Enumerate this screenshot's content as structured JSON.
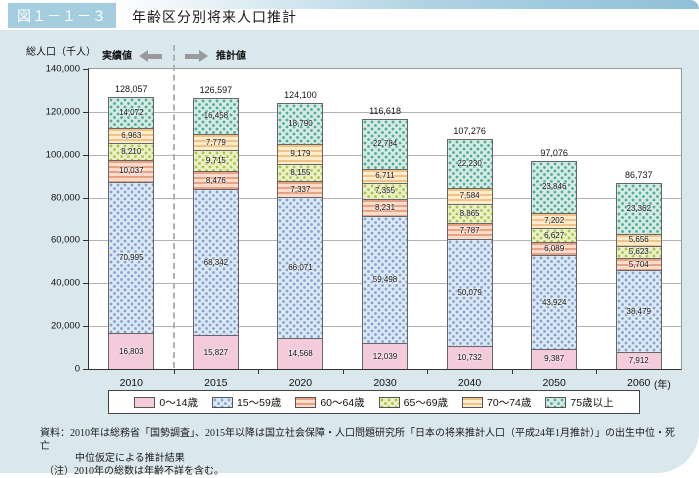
{
  "figure": {
    "tag": "図１－１－３",
    "title": "年齢区分別将来人口推計"
  },
  "chart": {
    "y_axis_title": "総人口（千人）",
    "actual_label": "実績値",
    "projected_label": "推計値",
    "year_unit_label": "(年)",
    "y_tick_labels": [
      "0",
      "20,000",
      "40,000",
      "60,000",
      "80,000",
      "100,000",
      "120,000",
      "140,000"
    ]
  },
  "chart_data": {
    "type": "bar",
    "stacked": true,
    "title": "年齢区分別将来人口推計",
    "ylabel": "総人口（千人）",
    "ylim": [
      0,
      140000
    ],
    "grid": true,
    "legend_position": "bottom",
    "categories": [
      "2010",
      "2015",
      "2020",
      "2030",
      "2040",
      "2050",
      "2060"
    ],
    "totals": [
      128057,
      126597,
      124100,
      116618,
      107276,
      97076,
      86737
    ],
    "series": [
      {
        "name": "0～14歳",
        "pattern": "p-solid-pink",
        "color": "#f3cbdb",
        "values": [
          16803,
          15827,
          14568,
          12039,
          10732,
          9387,
          7912
        ]
      },
      {
        "name": "15～59歳",
        "pattern": "p-dots-blue",
        "color": "#dde8f4",
        "values": [
          70995,
          68342,
          66071,
          59498,
          50079,
          43924,
          38479
        ]
      },
      {
        "name": "60～64歳",
        "pattern": "p-stripes-salmon",
        "color": "#f7d5c3",
        "values": [
          10037,
          8476,
          7337,
          8231,
          7787,
          6089,
          5704
        ]
      },
      {
        "name": "65～69歳",
        "pattern": "p-dots-green",
        "color": "#eaf1c6",
        "values": [
          8210,
          9715,
          8155,
          7355,
          8865,
          6627,
          5623
        ]
      },
      {
        "name": "70～74歳",
        "pattern": "p-stripes-orange",
        "color": "#fdeccb",
        "values": [
          6963,
          7779,
          9179,
          6711,
          7584,
          7202,
          5656
        ]
      },
      {
        "name": "75歳以上",
        "pattern": "p-dots-teal",
        "color": "#d5eae3",
        "values": [
          14072,
          16458,
          18790,
          22784,
          22230,
          23846,
          23362
        ]
      }
    ],
    "annotations": {
      "actual_region": "実績値",
      "projected_region": "推計値",
      "divider_between": [
        "2010",
        "2015"
      ]
    }
  },
  "notes": {
    "source_line1": "資料：2010年は総務省「国勢調査」、2015年以降は国立社会保障・人口問題研究所「日本の将来推計人口（平成24年1月推計）」の出生中位・死亡",
    "source_line2": "中位仮定による推計結果",
    "note_line": "（注）2010年の総数は年齢不詳を含む。"
  },
  "colors": {
    "badge_bg": "#a5cde0",
    "panel_bg": "#dae8ee",
    "grid": "#b3b3b3",
    "axis": "#333333",
    "arrow": "#9a9a9a"
  }
}
